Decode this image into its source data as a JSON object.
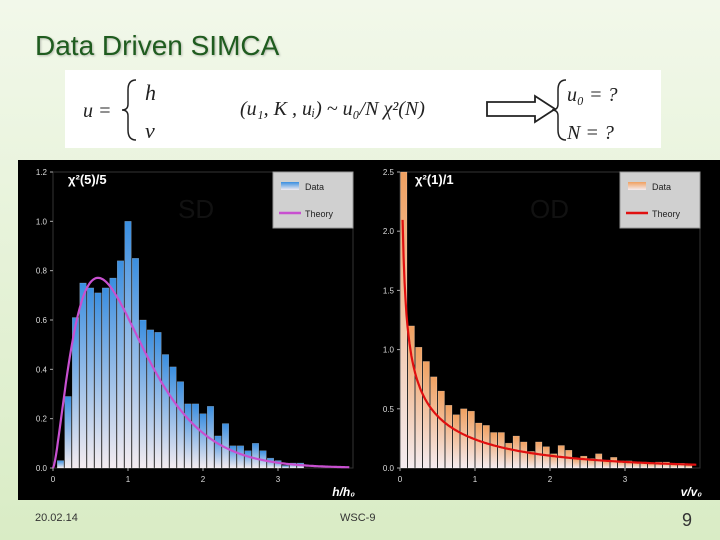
{
  "slide": {
    "title": "Data Driven SIMCA",
    "footer_date": "20.02.14",
    "footer_center": "WSC-9",
    "page_number": "9"
  },
  "formula": {
    "u_eq": "u =",
    "h": "h",
    "v": "v",
    "distribution": "(u₁, K , uᵢ) ~ u₀/N χ²(N)",
    "u0_q": "u₀ = ?",
    "N_q": "N = ?"
  },
  "chart_data": [
    {
      "type": "bar",
      "title": "χ²(5)/5",
      "panel_label": "SD",
      "xlabel": "h/h₀",
      "xlim": [
        0,
        4
      ],
      "ylim": [
        0,
        1.2
      ],
      "xticks": [
        0,
        1,
        2,
        3
      ],
      "yticks": [
        0.0,
        0.2,
        0.4,
        0.6,
        0.8,
        1.0,
        1.2
      ],
      "ytick_labels": [
        "0.0",
        "0.2",
        "0.4",
        "0.6",
        "0.8",
        "1.0",
        "1.2"
      ],
      "legend": [
        "Data",
        "Theory"
      ],
      "legend_position": "top-right",
      "bar_color": "#3a8ee0",
      "theory_color": "#c850d0",
      "bin_width": 0.1,
      "x": [
        0.1,
        0.2,
        0.3,
        0.4,
        0.5,
        0.6,
        0.7,
        0.8,
        0.9,
        1.0,
        1.1,
        1.2,
        1.3,
        1.4,
        1.5,
        1.6,
        1.7,
        1.8,
        1.9,
        2.0,
        2.1,
        2.2,
        2.3,
        2.4,
        2.5,
        2.6,
        2.7,
        2.8,
        2.9,
        3.0,
        3.1,
        3.2,
        3.3
      ],
      "values": [
        0.03,
        0.29,
        0.61,
        0.75,
        0.73,
        0.71,
        0.73,
        0.77,
        0.84,
        1.0,
        0.85,
        0.6,
        0.56,
        0.55,
        0.46,
        0.41,
        0.35,
        0.26,
        0.26,
        0.22,
        0.25,
        0.13,
        0.18,
        0.09,
        0.09,
        0.07,
        0.1,
        0.07,
        0.04,
        0.03,
        0.01,
        0.02,
        0.02
      ],
      "theory_dof": 5
    },
    {
      "type": "bar",
      "title": "χ²(1)/1",
      "panel_label": "OD",
      "xlabel": "v/v₀",
      "xlim": [
        0,
        4
      ],
      "ylim": [
        0,
        2.5
      ],
      "xticks": [
        0,
        1,
        2,
        3
      ],
      "yticks": [
        0.0,
        0.5,
        1.0,
        1.5,
        2.0,
        2.5
      ],
      "ytick_labels": [
        "0.0",
        "0.5",
        "1.0",
        "1.5",
        "2.0",
        "2.5"
      ],
      "legend": [
        "Data",
        "Theory"
      ],
      "legend_position": "top-right",
      "bar_color": "#f0a060",
      "theory_color": "#e01010",
      "bin_width": 0.1,
      "x": [
        0.05,
        0.15,
        0.25,
        0.35,
        0.45,
        0.55,
        0.65,
        0.75,
        0.85,
        0.95,
        1.05,
        1.15,
        1.25,
        1.35,
        1.45,
        1.55,
        1.65,
        1.75,
        1.85,
        1.95,
        2.05,
        2.15,
        2.25,
        2.35,
        2.45,
        2.55,
        2.65,
        2.75,
        2.85,
        2.95,
        3.05,
        3.15,
        3.25,
        3.35,
        3.45,
        3.55,
        3.65,
        3.75,
        3.85
      ],
      "values": [
        2.5,
        1.2,
        1.02,
        0.9,
        0.77,
        0.65,
        0.53,
        0.45,
        0.5,
        0.48,
        0.38,
        0.36,
        0.3,
        0.3,
        0.21,
        0.27,
        0.22,
        0.14,
        0.22,
        0.18,
        0.12,
        0.19,
        0.15,
        0.08,
        0.1,
        0.08,
        0.12,
        0.06,
        0.09,
        0.06,
        0.06,
        0.05,
        0.05,
        0.04,
        0.05,
        0.05,
        0.03,
        0.04,
        0.02
      ],
      "theory_dof": 1
    }
  ]
}
